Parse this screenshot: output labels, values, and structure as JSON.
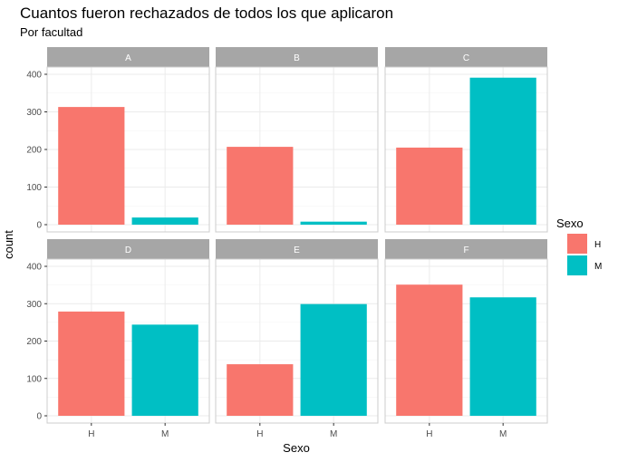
{
  "chart_data": {
    "type": "bar",
    "title": "Cuantos fueron rechazados de todos los que aplicaron",
    "subtitle": "Por facultad",
    "xlabel": "Sexo",
    "ylabel": "count",
    "ylim": [
      0,
      400
    ],
    "yticks": [
      0,
      100,
      200,
      300,
      400
    ],
    "grid": true,
    "categories": [
      "H",
      "M"
    ],
    "facets": [
      {
        "label": "A",
        "values": [
          313,
          19
        ]
      },
      {
        "label": "B",
        "values": [
          207,
          8
        ]
      },
      {
        "label": "C",
        "values": [
          205,
          391
        ]
      },
      {
        "label": "D",
        "values": [
          279,
          244
        ]
      },
      {
        "label": "E",
        "values": [
          138,
          299
        ]
      },
      {
        "label": "F",
        "values": [
          351,
          317
        ]
      }
    ],
    "legend": {
      "title": "Sexo",
      "placement": "right",
      "entries": [
        {
          "label": "H",
          "color": "#F8766D"
        },
        {
          "label": "M",
          "color": "#00BFC4"
        }
      ]
    },
    "colors": {
      "H": "#F8766D",
      "M": "#00BFC4",
      "strip": "#a6a6a6",
      "grid": "#ebebeb",
      "panel_border": "#cccccc"
    }
  }
}
